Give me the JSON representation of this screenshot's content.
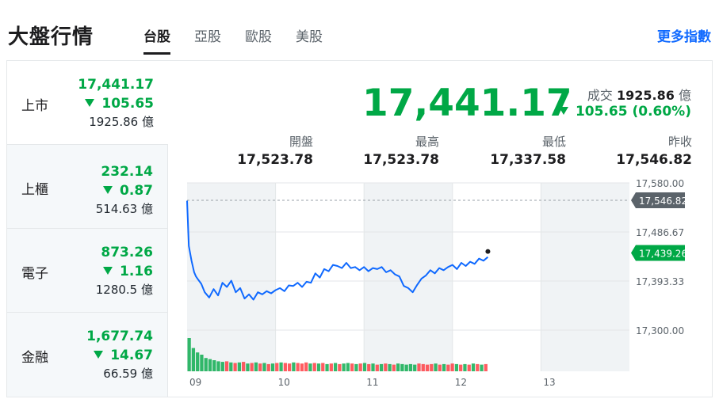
{
  "header": {
    "title": "大盤行情",
    "tabs": [
      {
        "label": "台股",
        "active": true
      },
      {
        "label": "亞股",
        "active": false
      },
      {
        "label": "歐股",
        "active": false
      },
      {
        "label": "美股",
        "active": false
      }
    ],
    "more": "更多指數"
  },
  "sidebar": {
    "items": [
      {
        "name": "上市",
        "price": "17,441.17",
        "change": "105.65",
        "volume": "1925.86 億",
        "active": true
      },
      {
        "name": "上櫃",
        "price": "232.14",
        "change": "0.87",
        "volume": "514.63 億",
        "active": false
      },
      {
        "name": "電子",
        "price": "873.26",
        "change": "1.16",
        "volume": "1280.5 億",
        "active": false
      },
      {
        "name": "金融",
        "price": "1,677.74",
        "change": "14.67",
        "volume": "66.59 億",
        "active": false
      }
    ]
  },
  "quote": {
    "price": "17,441.17",
    "turnover_label": "成交",
    "turnover_value": "1925.86",
    "turnover_unit": "億",
    "change": "105.65 (0.60%)",
    "direction": "down",
    "stats": [
      {
        "label": "開盤",
        "value": "17,523.78"
      },
      {
        "label": "最高",
        "value": "17,523.78"
      },
      {
        "label": "最低",
        "value": "17,337.58"
      },
      {
        "label": "昨收",
        "value": "17,546.82"
      }
    ]
  },
  "colors": {
    "down": "#00a846",
    "up": "#ff333a",
    "line": "#0f69ff",
    "accent_link": "#0f69ff"
  },
  "chart_data": {
    "type": "line",
    "x_ticks": [
      "09",
      "10",
      "11",
      "12",
      "13"
    ],
    "y_ticks": [
      17580.0,
      17486.67,
      17393.33,
      17300.0
    ],
    "ylim": [
      17300,
      17580
    ],
    "prev_close": 17546.82,
    "prev_close_label": "17,546.82",
    "current_label": "17,439.26",
    "current_value": 17439.26,
    "x_range": [
      0,
      5
    ],
    "line": {
      "x": [
        0.0,
        0.02,
        0.05,
        0.08,
        0.1,
        0.13,
        0.16,
        0.2,
        0.25,
        0.3,
        0.35,
        0.4,
        0.45,
        0.5,
        0.55,
        0.6,
        0.65,
        0.7,
        0.75,
        0.8,
        0.85,
        0.9,
        0.95,
        1.0,
        1.05,
        1.1,
        1.15,
        1.2,
        1.25,
        1.3,
        1.35,
        1.4,
        1.45,
        1.5,
        1.55,
        1.6,
        1.65,
        1.7,
        1.75,
        1.8,
        1.85,
        1.9,
        1.95,
        2.0,
        2.05,
        2.1,
        2.15,
        2.2,
        2.25,
        2.3,
        2.35,
        2.4,
        2.45,
        2.5,
        2.55,
        2.6,
        2.65,
        2.7,
        2.75,
        2.8,
        2.85,
        2.9,
        2.95,
        3.0,
        3.05,
        3.1,
        3.15,
        3.2,
        3.25,
        3.3,
        3.35,
        3.4
      ],
      "y": [
        17546,
        17460,
        17432,
        17410,
        17402,
        17395,
        17388,
        17372,
        17362,
        17378,
        17366,
        17390,
        17382,
        17394,
        17372,
        17380,
        17360,
        17368,
        17358,
        17372,
        17368,
        17374,
        17370,
        17376,
        17380,
        17374,
        17385,
        17384,
        17390,
        17382,
        17392,
        17390,
        17408,
        17400,
        17416,
        17412,
        17424,
        17422,
        17418,
        17428,
        17418,
        17420,
        17414,
        17420,
        17412,
        17418,
        17416,
        17420,
        17410,
        17414,
        17406,
        17402,
        17384,
        17380,
        17372,
        17386,
        17398,
        17404,
        17414,
        17408,
        17418,
        17414,
        17420,
        17424,
        17416,
        17428,
        17422,
        17430,
        17426,
        17436,
        17432,
        17439
      ]
    },
    "volume": {
      "values": [
        60,
        42,
        34,
        30,
        24,
        22,
        20,
        18,
        17,
        18,
        16,
        15,
        16,
        17,
        14,
        15,
        16,
        14,
        15,
        13,
        14,
        15,
        16,
        15,
        14,
        16,
        15,
        14,
        16,
        14,
        15,
        14,
        15,
        13,
        14,
        15,
        13,
        14,
        15,
        14,
        13,
        14,
        15,
        13,
        14,
        12,
        13,
        14,
        13,
        12,
        14,
        13,
        12,
        13,
        12,
        14,
        13,
        12,
        13,
        14,
        12,
        13,
        12,
        14,
        13,
        12,
        13,
        12,
        14,
        13,
        12,
        13
      ],
      "colors": [
        "down",
        "down",
        "down",
        "down",
        "down",
        "down",
        "down",
        "down",
        "down",
        "up",
        "down",
        "up",
        "down",
        "up",
        "down",
        "up",
        "down",
        "up",
        "down",
        "up",
        "down",
        "up",
        "down",
        "up",
        "up",
        "down",
        "up",
        "up",
        "up",
        "down",
        "up",
        "down",
        "up",
        "down",
        "up",
        "down",
        "up",
        "down",
        "down",
        "up",
        "down",
        "up",
        "down",
        "up",
        "down",
        "up",
        "down",
        "up",
        "down",
        "up",
        "down",
        "down",
        "down",
        "down",
        "down",
        "up",
        "up",
        "up",
        "up",
        "down",
        "up",
        "down",
        "up",
        "up",
        "down",
        "up",
        "down",
        "up",
        "down",
        "up",
        "down",
        "up"
      ]
    }
  }
}
